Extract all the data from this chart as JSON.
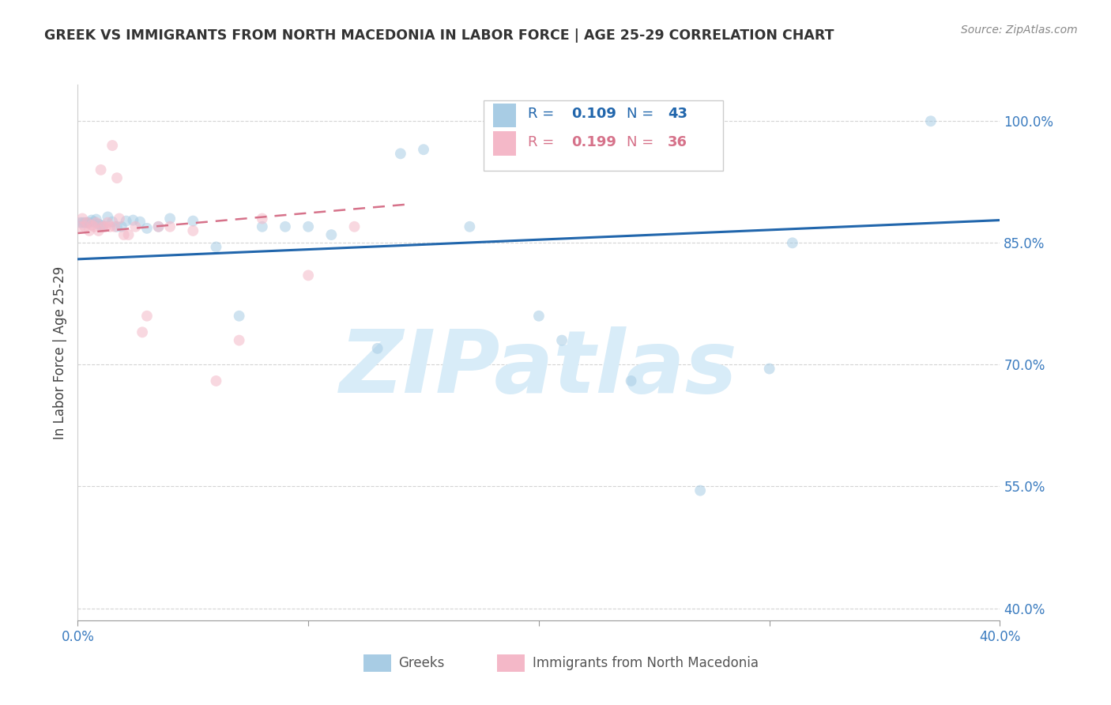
{
  "title": "GREEK VS IMMIGRANTS FROM NORTH MACEDONIA IN LABOR FORCE | AGE 25-29 CORRELATION CHART",
  "source_text": "Source: ZipAtlas.com",
  "ylabel": "In Labor Force | Age 25-29",
  "xlim": [
    0.0,
    0.4
  ],
  "ylim": [
    0.385,
    1.045
  ],
  "yticks": [
    1.0,
    0.85,
    0.7,
    0.55,
    0.4
  ],
  "ytick_labels": [
    "100.0%",
    "85.0%",
    "70.0%",
    "55.0%",
    "40.0%"
  ],
  "xticks": [
    0.0,
    0.1,
    0.2,
    0.3,
    0.4
  ],
  "xtick_labels": [
    "0.0%",
    "",
    "",
    "",
    "40.0%"
  ],
  "blue_scatter_x": [
    0.001,
    0.002,
    0.003,
    0.004,
    0.005,
    0.006,
    0.007,
    0.008,
    0.009,
    0.01,
    0.011,
    0.013,
    0.015,
    0.017,
    0.019,
    0.021,
    0.024,
    0.027,
    0.03,
    0.035,
    0.04,
    0.05,
    0.06,
    0.07,
    0.08,
    0.09,
    0.1,
    0.11,
    0.13,
    0.14,
    0.15,
    0.17,
    0.2,
    0.21,
    0.24,
    0.27,
    0.3,
    0.31,
    0.37
  ],
  "blue_scatter_y": [
    0.875,
    0.875,
    0.875,
    0.875,
    0.875,
    0.878,
    0.876,
    0.879,
    0.873,
    0.872,
    0.871,
    0.882,
    0.876,
    0.87,
    0.87,
    0.877,
    0.878,
    0.876,
    0.868,
    0.87,
    0.88,
    0.877,
    0.845,
    0.76,
    0.87,
    0.87,
    0.87,
    0.86,
    0.72,
    0.96,
    0.965,
    0.87,
    0.76,
    0.73,
    0.68,
    0.545,
    0.695,
    0.85,
    1.0
  ],
  "pink_scatter_x": [
    0.001,
    0.002,
    0.003,
    0.004,
    0.005,
    0.006,
    0.007,
    0.008,
    0.009,
    0.01,
    0.011,
    0.012,
    0.013,
    0.014,
    0.015,
    0.016,
    0.017,
    0.018,
    0.02,
    0.022,
    0.025,
    0.028,
    0.03,
    0.035,
    0.04,
    0.05,
    0.06,
    0.07,
    0.08,
    0.1,
    0.12
  ],
  "pink_scatter_y": [
    0.87,
    0.88,
    0.87,
    0.875,
    0.865,
    0.872,
    0.87,
    0.875,
    0.865,
    0.94,
    0.87,
    0.87,
    0.875,
    0.87,
    0.97,
    0.87,
    0.93,
    0.88,
    0.86,
    0.86,
    0.87,
    0.74,
    0.76,
    0.87,
    0.87,
    0.865,
    0.68,
    0.73,
    0.88,
    0.81,
    0.87
  ],
  "blue_line_x": [
    0.0,
    0.4
  ],
  "blue_line_y": [
    0.83,
    0.878
  ],
  "pink_line_x": [
    0.0,
    0.145
  ],
  "pink_line_y": [
    0.862,
    0.898
  ],
  "blue_color": "#a8cce4",
  "pink_color": "#f4b8c8",
  "blue_line_color": "#2166ac",
  "pink_line_color": "#d6728a",
  "grid_color": "#d0d0d0",
  "tick_label_color": "#3a7bbf",
  "title_color": "#333333",
  "watermark_text": "ZIPatlas",
  "watermark_color": "#d8ecf8",
  "legend_blue_text_color": "#2166ac",
  "legend_pink_text_color": "#d6728a",
  "scatter_size": 100,
  "scatter_alpha": 0.55,
  "bottom_legend_color": "#555555"
}
